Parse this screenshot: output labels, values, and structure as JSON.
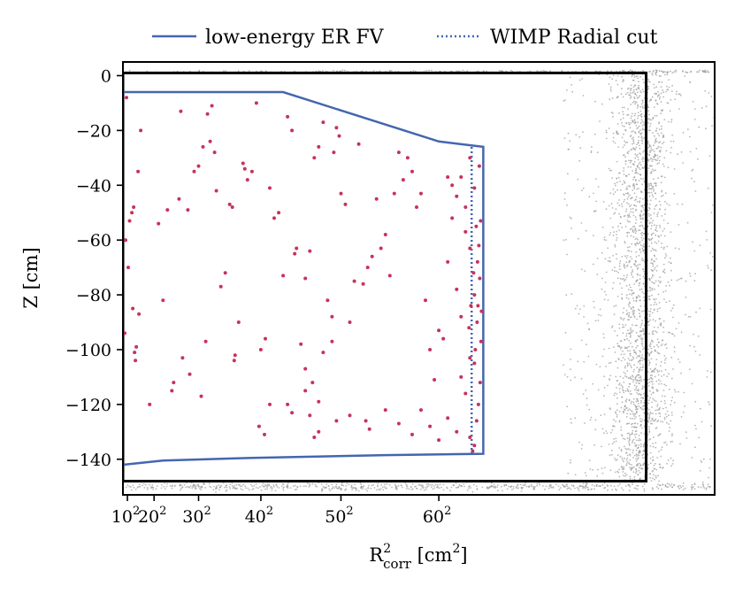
{
  "chart_data": {
    "type": "scatter",
    "title": "",
    "xlabel": "R",
    "xlabel_sup": "2",
    "xlabel_sub": "corr",
    "xlabel_unit_prefix": " [cm",
    "xlabel_unit_sup": "2",
    "xlabel_unit_suffix": "]",
    "ylabel": "Z [cm]",
    "xlim": [
      50,
      6700
    ],
    "ylim": [
      -153,
      5
    ],
    "x_ticks": [
      {
        "value": 100,
        "base": "10",
        "exp": "2"
      },
      {
        "value": 400,
        "base": "20",
        "exp": "2"
      },
      {
        "value": 900,
        "base": "30",
        "exp": "2"
      },
      {
        "value": 1600,
        "base": "40",
        "exp": "2"
      },
      {
        "value": 2500,
        "base": "50",
        "exp": "2"
      },
      {
        "value": 3600,
        "base": "60",
        "exp": "2"
      }
    ],
    "y_ticks": [
      0,
      -20,
      -40,
      -60,
      -80,
      -100,
      -120,
      -140
    ],
    "y_tick_labels": [
      "0",
      "−20",
      "−40",
      "−60",
      "−80",
      "−100",
      "−120",
      "−140"
    ],
    "legend": {
      "placement": "top-right-outside",
      "entries": [
        {
          "label": "low-energy ER FV",
          "style": "solid",
          "color": "#4466b0"
        },
        {
          "label": "WIMP Radial cut",
          "style": "dotted",
          "color": "#4466b0"
        }
      ]
    },
    "fiducial_volume": {
      "name": "low-energy ER FV",
      "color": "#4466b0",
      "points": [
        [
          50,
          -6
        ],
        [
          1850,
          -6
        ],
        [
          3600,
          -24
        ],
        [
          4100,
          -26
        ],
        [
          4100,
          -138
        ],
        [
          3000,
          -138.5
        ],
        [
          1500,
          -139.5
        ],
        [
          500,
          -140.5
        ],
        [
          50,
          -142
        ]
      ]
    },
    "wimp_radial_cut": {
      "name": "WIMP Radial cut",
      "color": "#4466b0",
      "r2": 3969,
      "z_top": -26,
      "z_bottom": -138
    },
    "tpc_boundary": {
      "color": "#000000",
      "r2_max": 5930,
      "z_top": 1,
      "z_bottom": -148
    },
    "series": [
      {
        "name": "events",
        "color": "#c8325a",
        "points": [
          [
            80,
            -60
          ],
          [
            70,
            -94
          ],
          [
            90,
            -8
          ],
          [
            110,
            -70
          ],
          [
            125,
            -53
          ],
          [
            150,
            -50
          ],
          [
            170,
            -48
          ],
          [
            190,
            -104
          ],
          [
            180,
            -101
          ],
          [
            200,
            -99
          ],
          [
            160,
            -85
          ],
          [
            230,
            -87
          ],
          [
            220,
            -35
          ],
          [
            250,
            -20
          ],
          [
            350,
            -120
          ],
          [
            450,
            -54
          ],
          [
            500,
            -82
          ],
          [
            550,
            -49
          ],
          [
            620,
            -112
          ],
          [
            600,
            -115
          ],
          [
            700,
            -13
          ],
          [
            680,
            -45
          ],
          [
            720,
            -103
          ],
          [
            780,
            -49
          ],
          [
            800,
            -109
          ],
          [
            850,
            -35
          ],
          [
            900,
            -33
          ],
          [
            950,
            -26
          ],
          [
            930,
            -117
          ],
          [
            980,
            -97
          ],
          [
            1000,
            -14
          ],
          [
            1050,
            -11
          ],
          [
            1080,
            -28
          ],
          [
            1030,
            -24
          ],
          [
            1100,
            -42
          ],
          [
            1150,
            -77
          ],
          [
            1200,
            -72
          ],
          [
            1250,
            -47
          ],
          [
            1280,
            -48
          ],
          [
            1300,
            -104
          ],
          [
            1310,
            -102
          ],
          [
            1350,
            -90
          ],
          [
            1400,
            -32
          ],
          [
            1420,
            -34
          ],
          [
            1450,
            -38
          ],
          [
            1500,
            -35
          ],
          [
            1550,
            -10
          ],
          [
            1600,
            -100
          ],
          [
            1650,
            -96
          ],
          [
            1700,
            -41
          ],
          [
            1750,
            -52
          ],
          [
            1800,
            -50
          ],
          [
            1850,
            -73
          ],
          [
            1900,
            -15
          ],
          [
            1950,
            -20
          ],
          [
            1980,
            -65
          ],
          [
            2000,
            -63
          ],
          [
            2100,
            -74
          ],
          [
            2150,
            -64
          ],
          [
            2200,
            -30
          ],
          [
            2250,
            -26
          ],
          [
            2300,
            -17
          ],
          [
            2350,
            -82
          ],
          [
            2400,
            -88
          ],
          [
            2420,
            -28
          ],
          [
            2450,
            -19
          ],
          [
            2480,
            -22
          ],
          [
            2500,
            -43
          ],
          [
            2550,
            -47
          ],
          [
            2600,
            -90
          ],
          [
            2650,
            -75
          ],
          [
            2700,
            -25
          ],
          [
            2750,
            -76
          ],
          [
            2800,
            -70
          ],
          [
            2850,
            -66
          ],
          [
            2900,
            -45
          ],
          [
            2950,
            -63
          ],
          [
            3000,
            -58
          ],
          [
            3050,
            -73
          ],
          [
            3100,
            -43
          ],
          [
            3150,
            -28
          ],
          [
            3200,
            -38
          ],
          [
            3250,
            -30
          ],
          [
            3300,
            -35
          ],
          [
            3350,
            -48
          ],
          [
            3400,
            -43
          ],
          [
            3450,
            -82
          ],
          [
            3500,
            -100
          ],
          [
            3550,
            -111
          ],
          [
            3600,
            -93
          ],
          [
            3650,
            -96
          ],
          [
            3700,
            -68
          ],
          [
            3750,
            -52
          ],
          [
            3800,
            -78
          ],
          [
            3850,
            -88
          ],
          [
            3900,
            -57
          ],
          [
            3950,
            -63
          ],
          [
            4000,
            -80
          ],
          [
            2250,
            -130
          ],
          [
            2450,
            -126
          ],
          [
            2600,
            -124
          ],
          [
            2780,
            -126
          ],
          [
            2820,
            -129
          ],
          [
            3000,
            -122
          ],
          [
            3150,
            -127
          ],
          [
            3300,
            -131
          ],
          [
            3400,
            -122
          ],
          [
            3500,
            -128
          ],
          [
            3600,
            -133
          ],
          [
            3700,
            -125
          ],
          [
            3800,
            -130
          ],
          [
            3850,
            -110
          ],
          [
            3900,
            -116
          ],
          [
            3950,
            -103
          ],
          [
            4000,
            -105
          ],
          [
            3950,
            -132
          ],
          [
            4000,
            -135
          ],
          [
            1580,
            -128
          ],
          [
            1640,
            -131
          ],
          [
            1700,
            -120
          ],
          [
            1900,
            -120
          ],
          [
            2100,
            -115
          ],
          [
            2150,
            -124
          ],
          [
            2200,
            -132
          ],
          [
            1950,
            -123
          ],
          [
            2050,
            -98
          ],
          [
            2100,
            -107
          ],
          [
            2180,
            -112
          ],
          [
            2250,
            -119
          ],
          [
            2300,
            -101
          ],
          [
            2400,
            -97
          ],
          [
            3700,
            -37
          ],
          [
            3750,
            -40
          ],
          [
            3800,
            -44
          ],
          [
            3850,
            -37
          ],
          [
            3900,
            -48
          ],
          [
            3950,
            -30
          ],
          [
            4000,
            -41
          ],
          [
            4020,
            -55
          ],
          [
            4050,
            -62
          ],
          [
            4060,
            -74
          ],
          [
            4040,
            -84
          ],
          [
            4030,
            -90
          ],
          [
            4010,
            -100
          ],
          [
            4055,
            -33
          ],
          [
            4070,
            -53
          ],
          [
            4080,
            -86
          ],
          [
            4075,
            -97
          ],
          [
            4065,
            -112
          ],
          [
            4045,
            -120
          ],
          [
            4025,
            -126
          ],
          [
            3980,
            -137
          ],
          [
            3990,
            -72
          ],
          [
            4035,
            -68
          ],
          [
            3960,
            -84
          ],
          [
            3940,
            -92
          ]
        ]
      }
    ],
    "background": {
      "name": "background events (grey, outside FV)",
      "color": "#999999"
    }
  }
}
